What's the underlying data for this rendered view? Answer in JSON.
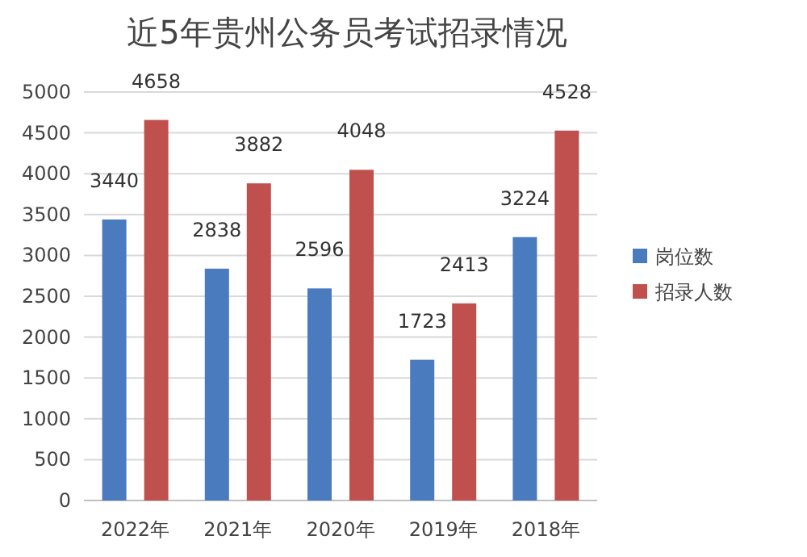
{
  "chart_data": {
    "type": "bar",
    "title": "近5年贵州公务员考试招录情况",
    "categories": [
      "2022年",
      "2021年",
      "2020年",
      "2019年",
      "2018年"
    ],
    "series": [
      {
        "name": "岗位数",
        "color": "#4a7bbf",
        "values": [
          3440,
          2838,
          2596,
          1723,
          3224
        ]
      },
      {
        "name": "招录人数",
        "color": "#c0504d",
        "values": [
          4658,
          3882,
          4048,
          2413,
          4528
        ]
      }
    ],
    "ylim": [
      0,
      5000
    ],
    "yticks": [
      0,
      500,
      1000,
      1500,
      2000,
      2500,
      3000,
      3500,
      4000,
      4500,
      5000
    ],
    "grid": "y",
    "legend": "right",
    "data_labels": true
  }
}
